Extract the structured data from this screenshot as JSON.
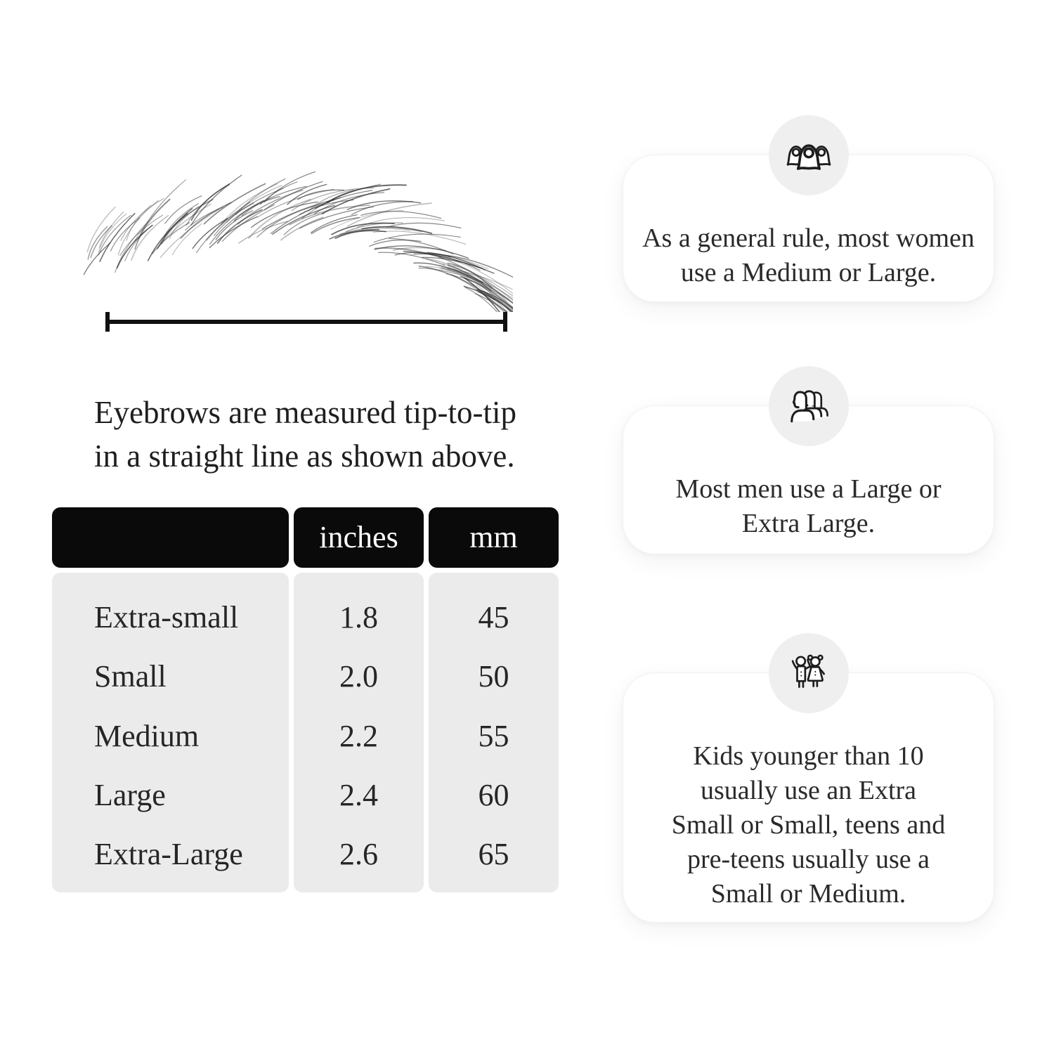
{
  "figure": {
    "caption_lines": [
      "Eyebrows are measured tip-to-tip",
      "in a straight line as shown above."
    ]
  },
  "size_table": {
    "headers": [
      "",
      "inches",
      "mm"
    ],
    "rows": [
      {
        "label": "Extra-small",
        "inches": "1.8",
        "mm": "45"
      },
      {
        "label": "Small",
        "inches": "2.0",
        "mm": "50"
      },
      {
        "label": "Medium",
        "inches": "2.2",
        "mm": "55"
      },
      {
        "label": "Large",
        "inches": "2.4",
        "mm": "60"
      },
      {
        "label": "Extra-Large",
        "inches": "2.6",
        "mm": "65"
      }
    ]
  },
  "cards": [
    {
      "icon": "women-group-icon",
      "lines": [
        "As a general rule, most women",
        "use a Medium or Large."
      ]
    },
    {
      "icon": "men-group-icon",
      "lines": [
        "Most men use a Large or",
        "Extra Large."
      ]
    },
    {
      "icon": "kids-icon",
      "lines": [
        "Kids younger than 10",
        "usually use an Extra",
        "Small or Small, teens and",
        "pre-teens usually use a",
        "Small or Medium."
      ]
    }
  ],
  "colors": {
    "table_header_bg": "#0a0a0a",
    "table_body_bg": "#ebebeb",
    "badge_bg": "#f0efef",
    "text": "#232323"
  }
}
